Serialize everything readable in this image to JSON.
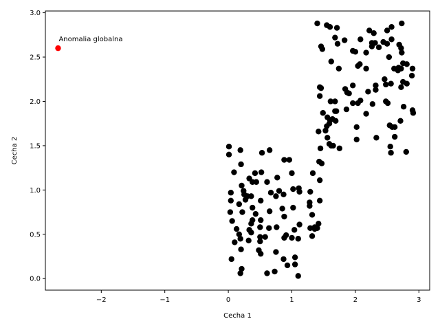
{
  "chart_data": {
    "type": "scatter",
    "xlabel": "Cecha 1",
    "ylabel": "Cecha 2",
    "xlim": [
      -2.88,
      3.17
    ],
    "ylim": [
      -0.13,
      3.02
    ],
    "xticks": [
      -2,
      -1,
      0,
      1,
      2,
      3
    ],
    "yticks": [
      0.0,
      0.5,
      1.0,
      1.5,
      2.0,
      2.5,
      3.0
    ],
    "xtick_labels": [
      "−2",
      "−1",
      "0",
      "1",
      "2",
      "3"
    ],
    "ytick_labels": [
      "0.0",
      "0.5",
      "1.0",
      "1.5",
      "2.0",
      "2.5",
      "3.0"
    ],
    "grid": false,
    "series": [
      {
        "color": "#000000",
        "points": [
          [
            0.01,
            1.49
          ],
          [
            0.19,
            1.45
          ],
          [
            0.53,
            1.42
          ],
          [
            0.65,
            1.45
          ],
          [
            0.88,
            1.34
          ],
          [
            0.96,
            1.34
          ],
          [
            0.01,
            1.4
          ],
          [
            0.2,
            1.29
          ],
          [
            0.09,
            1.2
          ],
          [
            0.42,
            1.19
          ],
          [
            0.52,
            1.2
          ],
          [
            0.33,
            1.13
          ],
          [
            0.38,
            1.09
          ],
          [
            0.44,
            1.09
          ],
          [
            0.61,
            1.09
          ],
          [
            0.77,
            1.14
          ],
          [
            1.0,
            1.19
          ],
          [
            1.44,
            1.11
          ],
          [
            1.33,
            1.19
          ],
          [
            0.21,
            1.05
          ],
          [
            0.24,
            0.99
          ],
          [
            0.04,
            0.97
          ],
          [
            0.25,
            0.95
          ],
          [
            0.3,
            0.93
          ],
          [
            0.36,
            0.93
          ],
          [
            0.67,
            0.97
          ],
          [
            0.8,
            0.99
          ],
          [
            0.87,
            0.95
          ],
          [
            0.75,
            0.93
          ],
          [
            1.02,
            1.01
          ],
          [
            1.11,
            1.02
          ],
          [
            1.12,
            0.98
          ],
          [
            1.29,
            0.98
          ],
          [
            0.27,
            0.89
          ],
          [
            0.04,
            0.88
          ],
          [
            0.17,
            0.84
          ],
          [
            0.51,
            0.88
          ],
          [
            1.44,
            0.88
          ],
          [
            1.28,
            0.86
          ],
          [
            0.38,
            0.8
          ],
          [
            0.22,
            0.75
          ],
          [
            0.43,
            0.73
          ],
          [
            0.03,
            0.75
          ],
          [
            0.85,
            0.79
          ],
          [
            1.02,
            0.8
          ],
          [
            1.28,
            0.82
          ],
          [
            0.65,
            0.76
          ],
          [
            1.32,
            0.72
          ],
          [
            0.06,
            0.65
          ],
          [
            0.38,
            0.66
          ],
          [
            0.51,
            0.66
          ],
          [
            0.36,
            0.62
          ],
          [
            0.88,
            0.7
          ],
          [
            1.12,
            0.61
          ],
          [
            1.29,
            0.57
          ],
          [
            1.4,
            0.57
          ],
          [
            1.42,
            0.62
          ],
          [
            1.36,
            0.56
          ],
          [
            0.13,
            0.56
          ],
          [
            0.17,
            0.5
          ],
          [
            0.33,
            0.55
          ],
          [
            0.5,
            0.58
          ],
          [
            0.64,
            0.57
          ],
          [
            0.76,
            0.58
          ],
          [
            1.04,
            0.55
          ],
          [
            1.36,
            0.58
          ],
          [
            0.36,
            0.52
          ],
          [
            0.19,
            0.45
          ],
          [
            0.1,
            0.41
          ],
          [
            0.32,
            0.43
          ],
          [
            0.5,
            0.47
          ],
          [
            0.58,
            0.47
          ],
          [
            0.88,
            0.46
          ],
          [
            0.91,
            0.49
          ],
          [
            1.0,
            0.46
          ],
          [
            1.1,
            0.45
          ],
          [
            1.32,
            0.48
          ],
          [
            0.5,
            0.42
          ],
          [
            0.2,
            0.33
          ],
          [
            0.48,
            0.32
          ],
          [
            0.75,
            0.3
          ],
          [
            0.05,
            0.22
          ],
          [
            0.51,
            0.28
          ],
          [
            0.87,
            0.22
          ],
          [
            1.05,
            0.24
          ],
          [
            0.21,
            0.11
          ],
          [
            0.93,
            0.15
          ],
          [
            1.05,
            0.16
          ],
          [
            0.19,
            0.06
          ],
          [
            0.61,
            0.06
          ],
          [
            0.73,
            0.08
          ],
          [
            1.1,
            0.03
          ],
          [
            1.4,
            2.88
          ],
          [
            1.55,
            2.86
          ],
          [
            1.6,
            2.84
          ],
          [
            1.71,
            2.83
          ],
          [
            2.22,
            2.8
          ],
          [
            2.29,
            2.77
          ],
          [
            2.5,
            2.8
          ],
          [
            2.57,
            2.84
          ],
          [
            2.73,
            2.88
          ],
          [
            1.68,
            2.72
          ],
          [
            1.83,
            2.69
          ],
          [
            2.08,
            2.7
          ],
          [
            2.26,
            2.66
          ],
          [
            2.44,
            2.67
          ],
          [
            2.5,
            2.65
          ],
          [
            2.57,
            2.7
          ],
          [
            2.69,
            2.64
          ],
          [
            1.46,
            2.62
          ],
          [
            1.48,
            2.59
          ],
          [
            1.72,
            2.65
          ],
          [
            2.26,
            2.62
          ],
          [
            2.31,
            2.66
          ],
          [
            2.37,
            2.61
          ],
          [
            2.72,
            2.6
          ],
          [
            2.73,
            2.55
          ],
          [
            1.96,
            2.57
          ],
          [
            2.0,
            2.56
          ],
          [
            2.17,
            2.55
          ],
          [
            2.53,
            2.5
          ],
          [
            1.62,
            2.45
          ],
          [
            1.74,
            2.37
          ],
          [
            2.04,
            2.4
          ],
          [
            2.07,
            2.42
          ],
          [
            2.17,
            2.37
          ],
          [
            2.61,
            2.37
          ],
          [
            2.67,
            2.35
          ],
          [
            2.75,
            2.43
          ],
          [
            2.81,
            2.42
          ],
          [
            2.68,
            2.38
          ],
          [
            2.72,
            2.37
          ],
          [
            2.9,
            2.37
          ],
          [
            2.89,
            2.29
          ],
          [
            2.46,
            2.25
          ],
          [
            2.56,
            2.2
          ],
          [
            2.75,
            2.22
          ],
          [
            2.81,
            2.2
          ],
          [
            2.32,
            2.18
          ],
          [
            2.48,
            2.19
          ],
          [
            1.44,
            2.16
          ],
          [
            1.46,
            2.15
          ],
          [
            1.96,
            2.18
          ],
          [
            2.32,
            2.13
          ],
          [
            2.2,
            2.11
          ],
          [
            1.84,
            2.14
          ],
          [
            1.87,
            2.1
          ],
          [
            1.9,
            2.09
          ],
          [
            2.72,
            2.16
          ],
          [
            1.44,
            2.06
          ],
          [
            1.61,
            2.0
          ],
          [
            1.68,
            2.0
          ],
          [
            1.96,
            1.98
          ],
          [
            2.04,
            1.98
          ],
          [
            2.08,
            2.01
          ],
          [
            2.27,
            1.97
          ],
          [
            2.48,
            2.0
          ],
          [
            2.51,
            1.98
          ],
          [
            2.76,
            1.94
          ],
          [
            2.9,
            1.9
          ],
          [
            2.91,
            1.87
          ],
          [
            1.68,
            1.89
          ],
          [
            1.7,
            1.89
          ],
          [
            1.86,
            1.91
          ],
          [
            1.49,
            1.87
          ],
          [
            2.17,
            1.86
          ],
          [
            1.56,
            1.82
          ],
          [
            1.6,
            1.79
          ],
          [
            1.64,
            1.8
          ],
          [
            1.69,
            1.78
          ],
          [
            2.71,
            1.78
          ],
          [
            1.42,
            1.66
          ],
          [
            1.53,
            1.67
          ],
          [
            1.55,
            1.72
          ],
          [
            1.59,
            1.75
          ],
          [
            2.54,
            1.73
          ],
          [
            2.58,
            1.71
          ],
          [
            2.62,
            1.71
          ],
          [
            2.02,
            1.71
          ],
          [
            2.62,
            1.6
          ],
          [
            2.33,
            1.59
          ],
          [
            2.02,
            1.57
          ],
          [
            1.56,
            1.59
          ],
          [
            1.59,
            1.52
          ],
          [
            1.62,
            1.5
          ],
          [
            1.65,
            1.5
          ],
          [
            1.75,
            1.47
          ],
          [
            1.45,
            1.47
          ],
          [
            2.55,
            1.49
          ],
          [
            2.56,
            1.42
          ],
          [
            2.8,
            1.43
          ],
          [
            1.43,
            1.32
          ],
          [
            1.47,
            1.3
          ]
        ]
      },
      {
        "color": "#ff0000",
        "points": [
          [
            -2.68,
            2.6
          ]
        ]
      }
    ],
    "annotations": [
      {
        "text": "Anomalia globalna",
        "x": -2.68,
        "y": 2.6
      }
    ]
  }
}
